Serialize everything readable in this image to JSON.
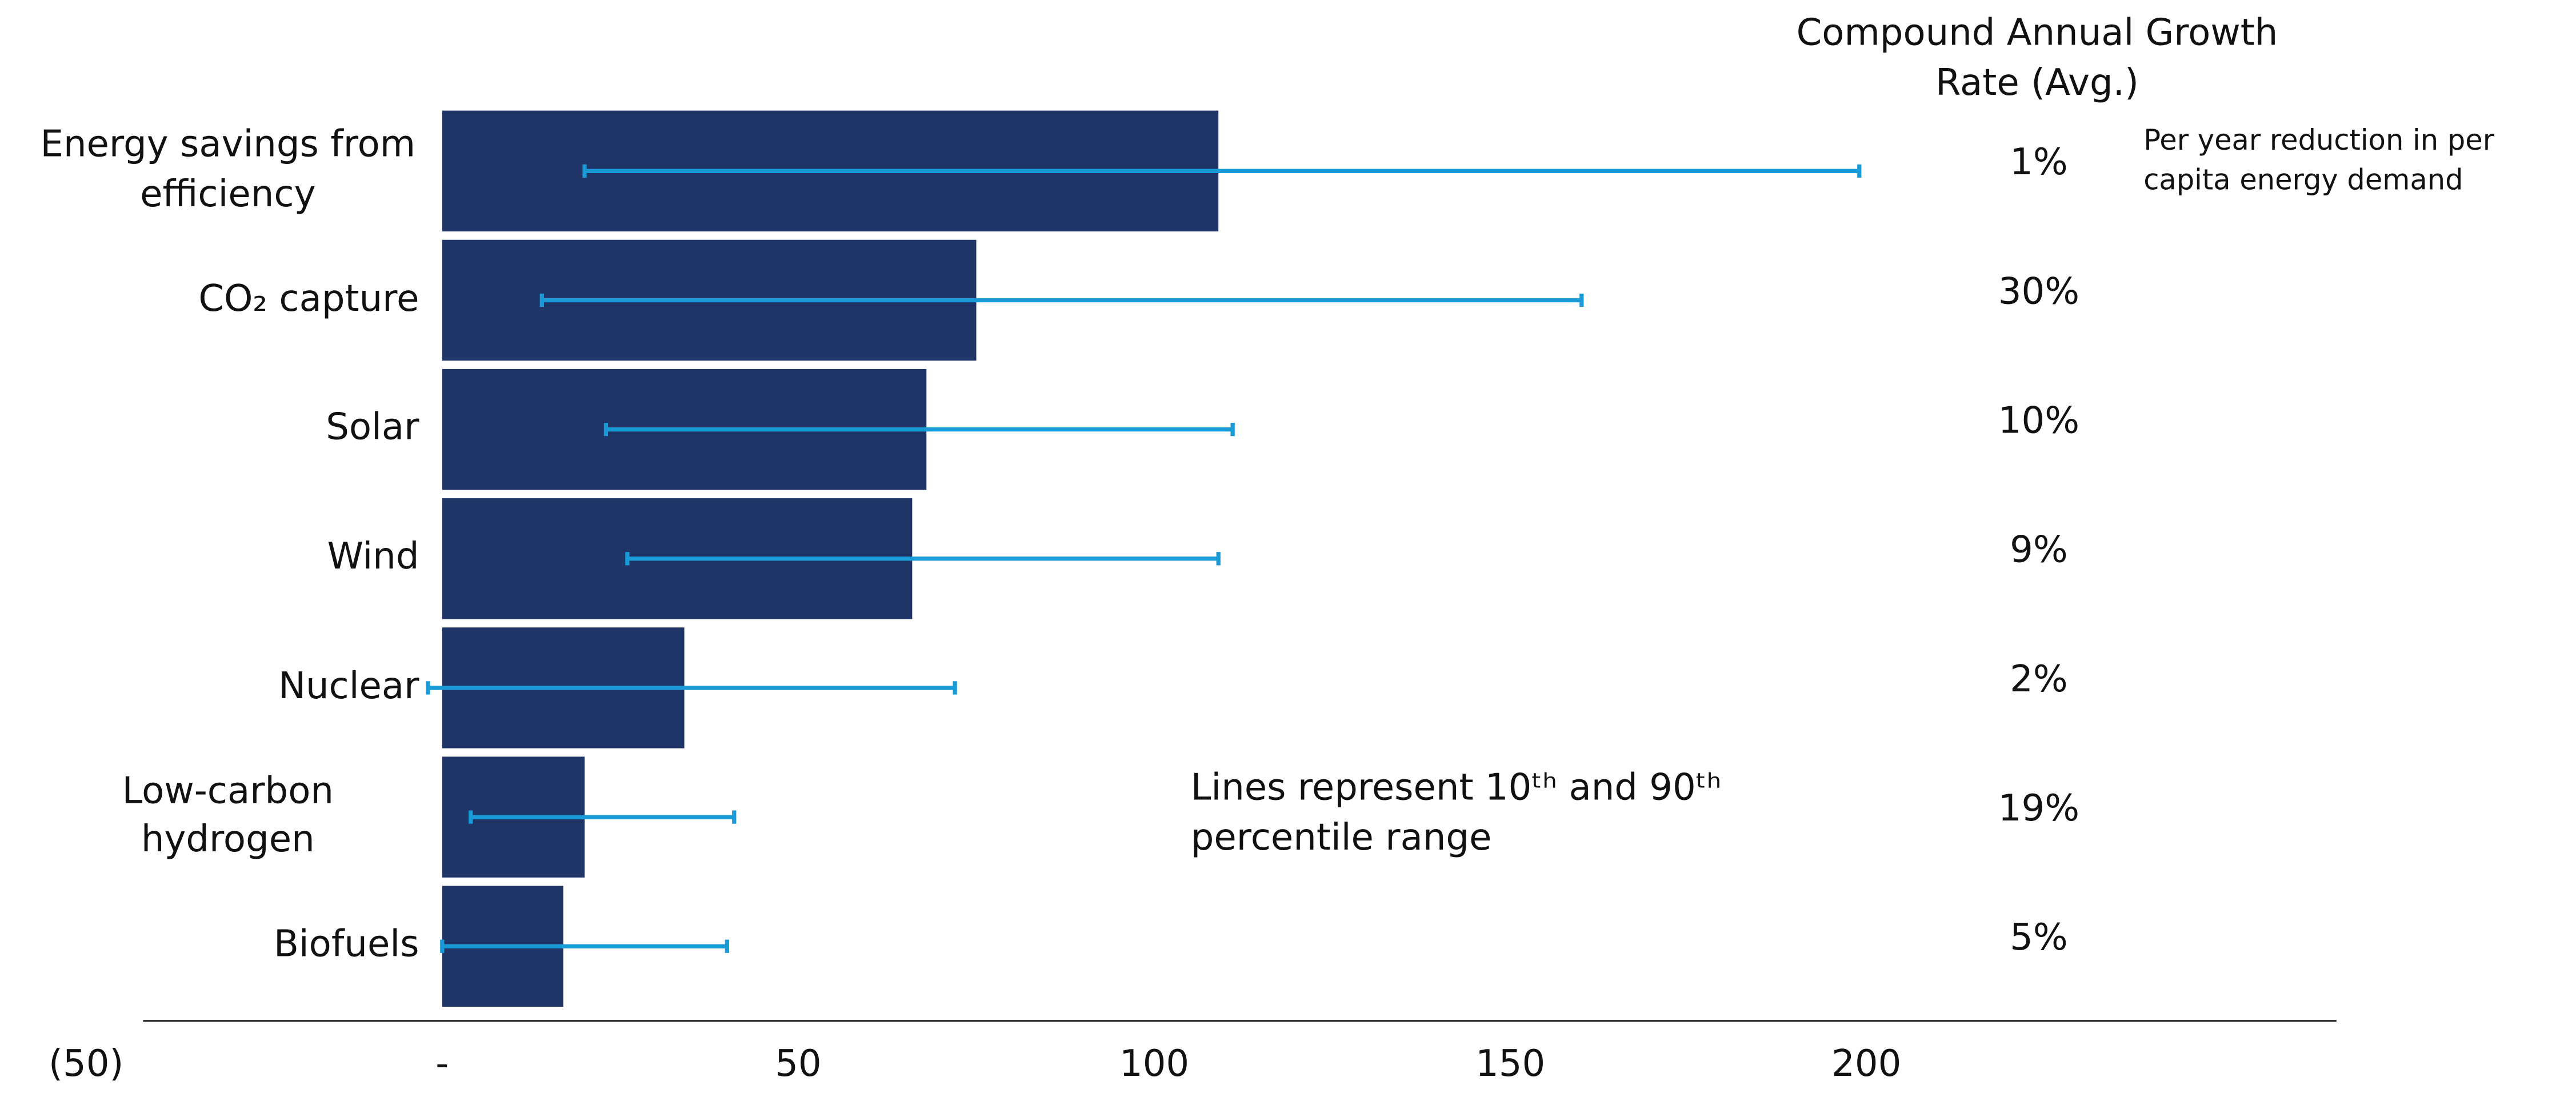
{
  "chart_data": {
    "type": "bar",
    "orientation": "horizontal",
    "categories": [
      "Energy savings from efficiency",
      "CO₂ capture",
      "Solar",
      "Wind",
      "Nuclear",
      "Low-carbon hydrogen",
      "Biofuels"
    ],
    "values": [
      109,
      75,
      68,
      66,
      34,
      20,
      17
    ],
    "color": "#1f3567",
    "p10": [
      20,
      14,
      23,
      26,
      -2,
      4,
      0
    ],
    "p90": [
      199,
      160,
      111,
      109,
      72,
      41,
      40
    ],
    "error_color": "#1a9ad6",
    "xlim": [
      -42,
      266
    ],
    "xticks": [
      {
        "value": -50,
        "label": "(50)"
      },
      {
        "value": 0,
        "label": "-"
      },
      50,
      100,
      150,
      200
    ],
    "cagr_title": "Compound Annual Growth Rate (Avg.)",
    "cagr": {
      "values": [
        1,
        30,
        10,
        9,
        2,
        19,
        5
      ],
      "value_labels": [
        "1%",
        "30%",
        "10%",
        "9%",
        "2%",
        "19%",
        "5%"
      ]
    },
    "cagr_note": "Per year reduction in per capita energy demand",
    "annotation": "Lines represent 10ᵗʰ and 90ᵗʰ percentile range"
  }
}
